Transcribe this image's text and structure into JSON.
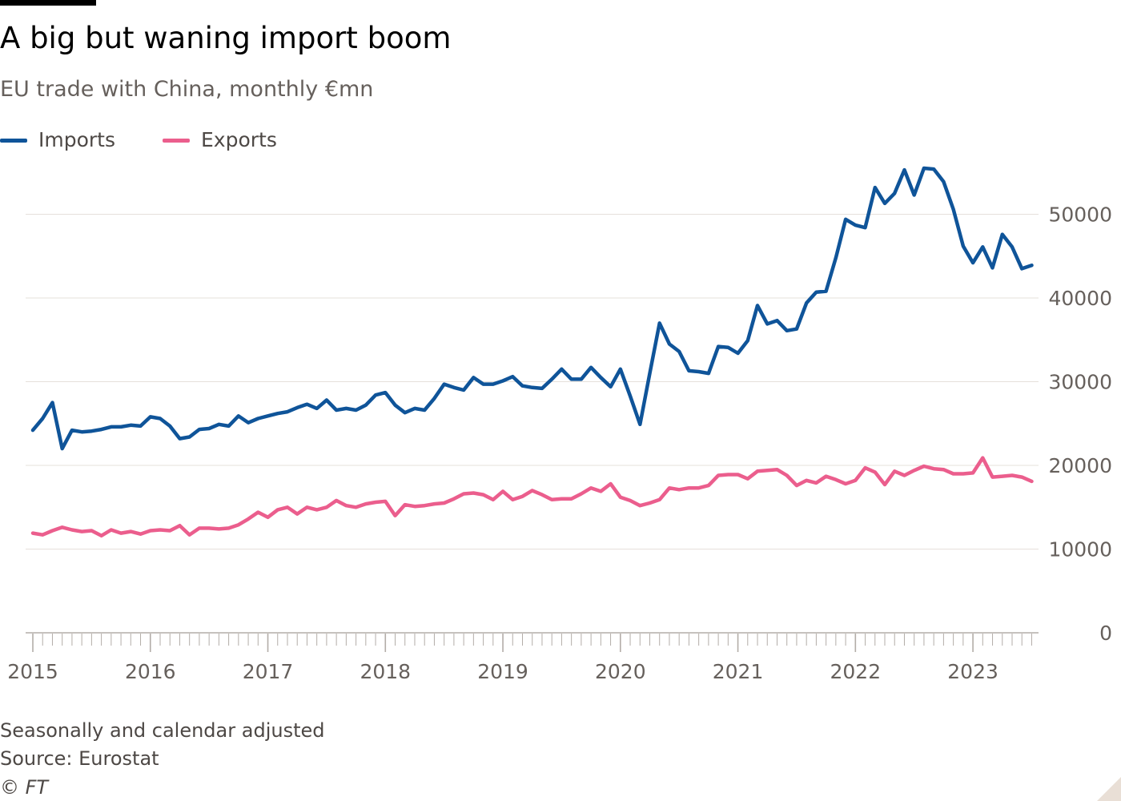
{
  "title": "A big but waning import boom",
  "subtitle": "EU trade with China, monthly €mn",
  "colors": {
    "imports": "#0f5499",
    "exports": "#eb5e8d",
    "grid": "#e6e0db",
    "axis": "#66605c",
    "text": "#4d4845"
  },
  "legend": [
    {
      "name": "Imports",
      "color": "#0f5499"
    },
    {
      "name": "Exports",
      "color": "#eb5e8d"
    }
  ],
  "chart_data": {
    "type": "line",
    "title": "A big but waning import boom",
    "subtitle": "EU trade with China, monthly €mn",
    "xlabel": "",
    "ylabel": "",
    "x_start": "2015-01",
    "x_frequency": "monthly",
    "x_tick_labels": [
      "2015",
      "2016",
      "2017",
      "2018",
      "2019",
      "2020",
      "2021",
      "2022",
      "2023"
    ],
    "y_ticks": [
      0,
      10000,
      20000,
      30000,
      40000,
      50000
    ],
    "ylim": [
      0,
      55000
    ],
    "xlim": [
      "2015-01",
      "2023-08"
    ],
    "grid": true,
    "legend_position": "top-left",
    "y_axis_side": "right",
    "series": [
      {
        "name": "Imports",
        "color": "#0f5499",
        "values": [
          24200,
          25600,
          27500,
          22000,
          24200,
          24000,
          24100,
          24300,
          24600,
          24600,
          24800,
          24700,
          25800,
          25600,
          24700,
          23200,
          23400,
          24300,
          24400,
          24900,
          24700,
          25900,
          25100,
          25600,
          25900,
          26200,
          26400,
          26900,
          27300,
          26800,
          27800,
          26600,
          26800,
          26600,
          27200,
          28400,
          28700,
          27200,
          26300,
          26800,
          26600,
          28000,
          29700,
          29300,
          29000,
          30500,
          29700,
          29700,
          30100,
          30600,
          29500,
          29300,
          29200,
          30300,
          31500,
          30300,
          30300,
          31700,
          30500,
          29400,
          31500,
          28300,
          24900,
          31000,
          37000,
          34500,
          33600,
          31300,
          31200,
          31000,
          34200,
          34100,
          33400,
          34900,
          39100,
          36900,
          37300,
          36100,
          36300,
          39400,
          40700,
          40800,
          44800,
          49400,
          48700,
          48400,
          53200,
          51300,
          52500,
          55300,
          52300,
          55500,
          55400,
          53900,
          50600,
          46200,
          44200,
          46100,
          43600,
          47600,
          46100,
          43500,
          43900
        ]
      },
      {
        "name": "Exports",
        "color": "#eb5e8d",
        "values": [
          11900,
          11700,
          12200,
          12600,
          12300,
          12100,
          12200,
          11600,
          12300,
          11900,
          12100,
          11800,
          12200,
          12300,
          12200,
          12800,
          11700,
          12500,
          12500,
          12400,
          12500,
          12900,
          13600,
          14400,
          13800,
          14700,
          15000,
          14200,
          15000,
          14700,
          15000,
          15800,
          15200,
          15000,
          15400,
          15600,
          15700,
          14000,
          15300,
          15100,
          15200,
          15400,
          15500,
          16000,
          16600,
          16700,
          16500,
          15900,
          16900,
          15900,
          16300,
          17000,
          16500,
          15900,
          16000,
          16000,
          16600,
          17300,
          16900,
          17800,
          16200,
          15800,
          15200,
          15500,
          15900,
          17300,
          17100,
          17300,
          17300,
          17600,
          18800,
          18900,
          18900,
          18400,
          19300,
          19400,
          19500,
          18800,
          17600,
          18200,
          17900,
          18700,
          18300,
          17800,
          18200,
          19700,
          19200,
          17700,
          19300,
          18800,
          19400,
          19900,
          19600,
          19500,
          19000,
          19000,
          19100,
          20900,
          18600,
          18700,
          18800,
          18600,
          18100
        ]
      }
    ]
  },
  "footnotes": {
    "note": "Seasonally and calendar adjusted",
    "source": "Source: Eurostat",
    "copyright": "© FT"
  }
}
